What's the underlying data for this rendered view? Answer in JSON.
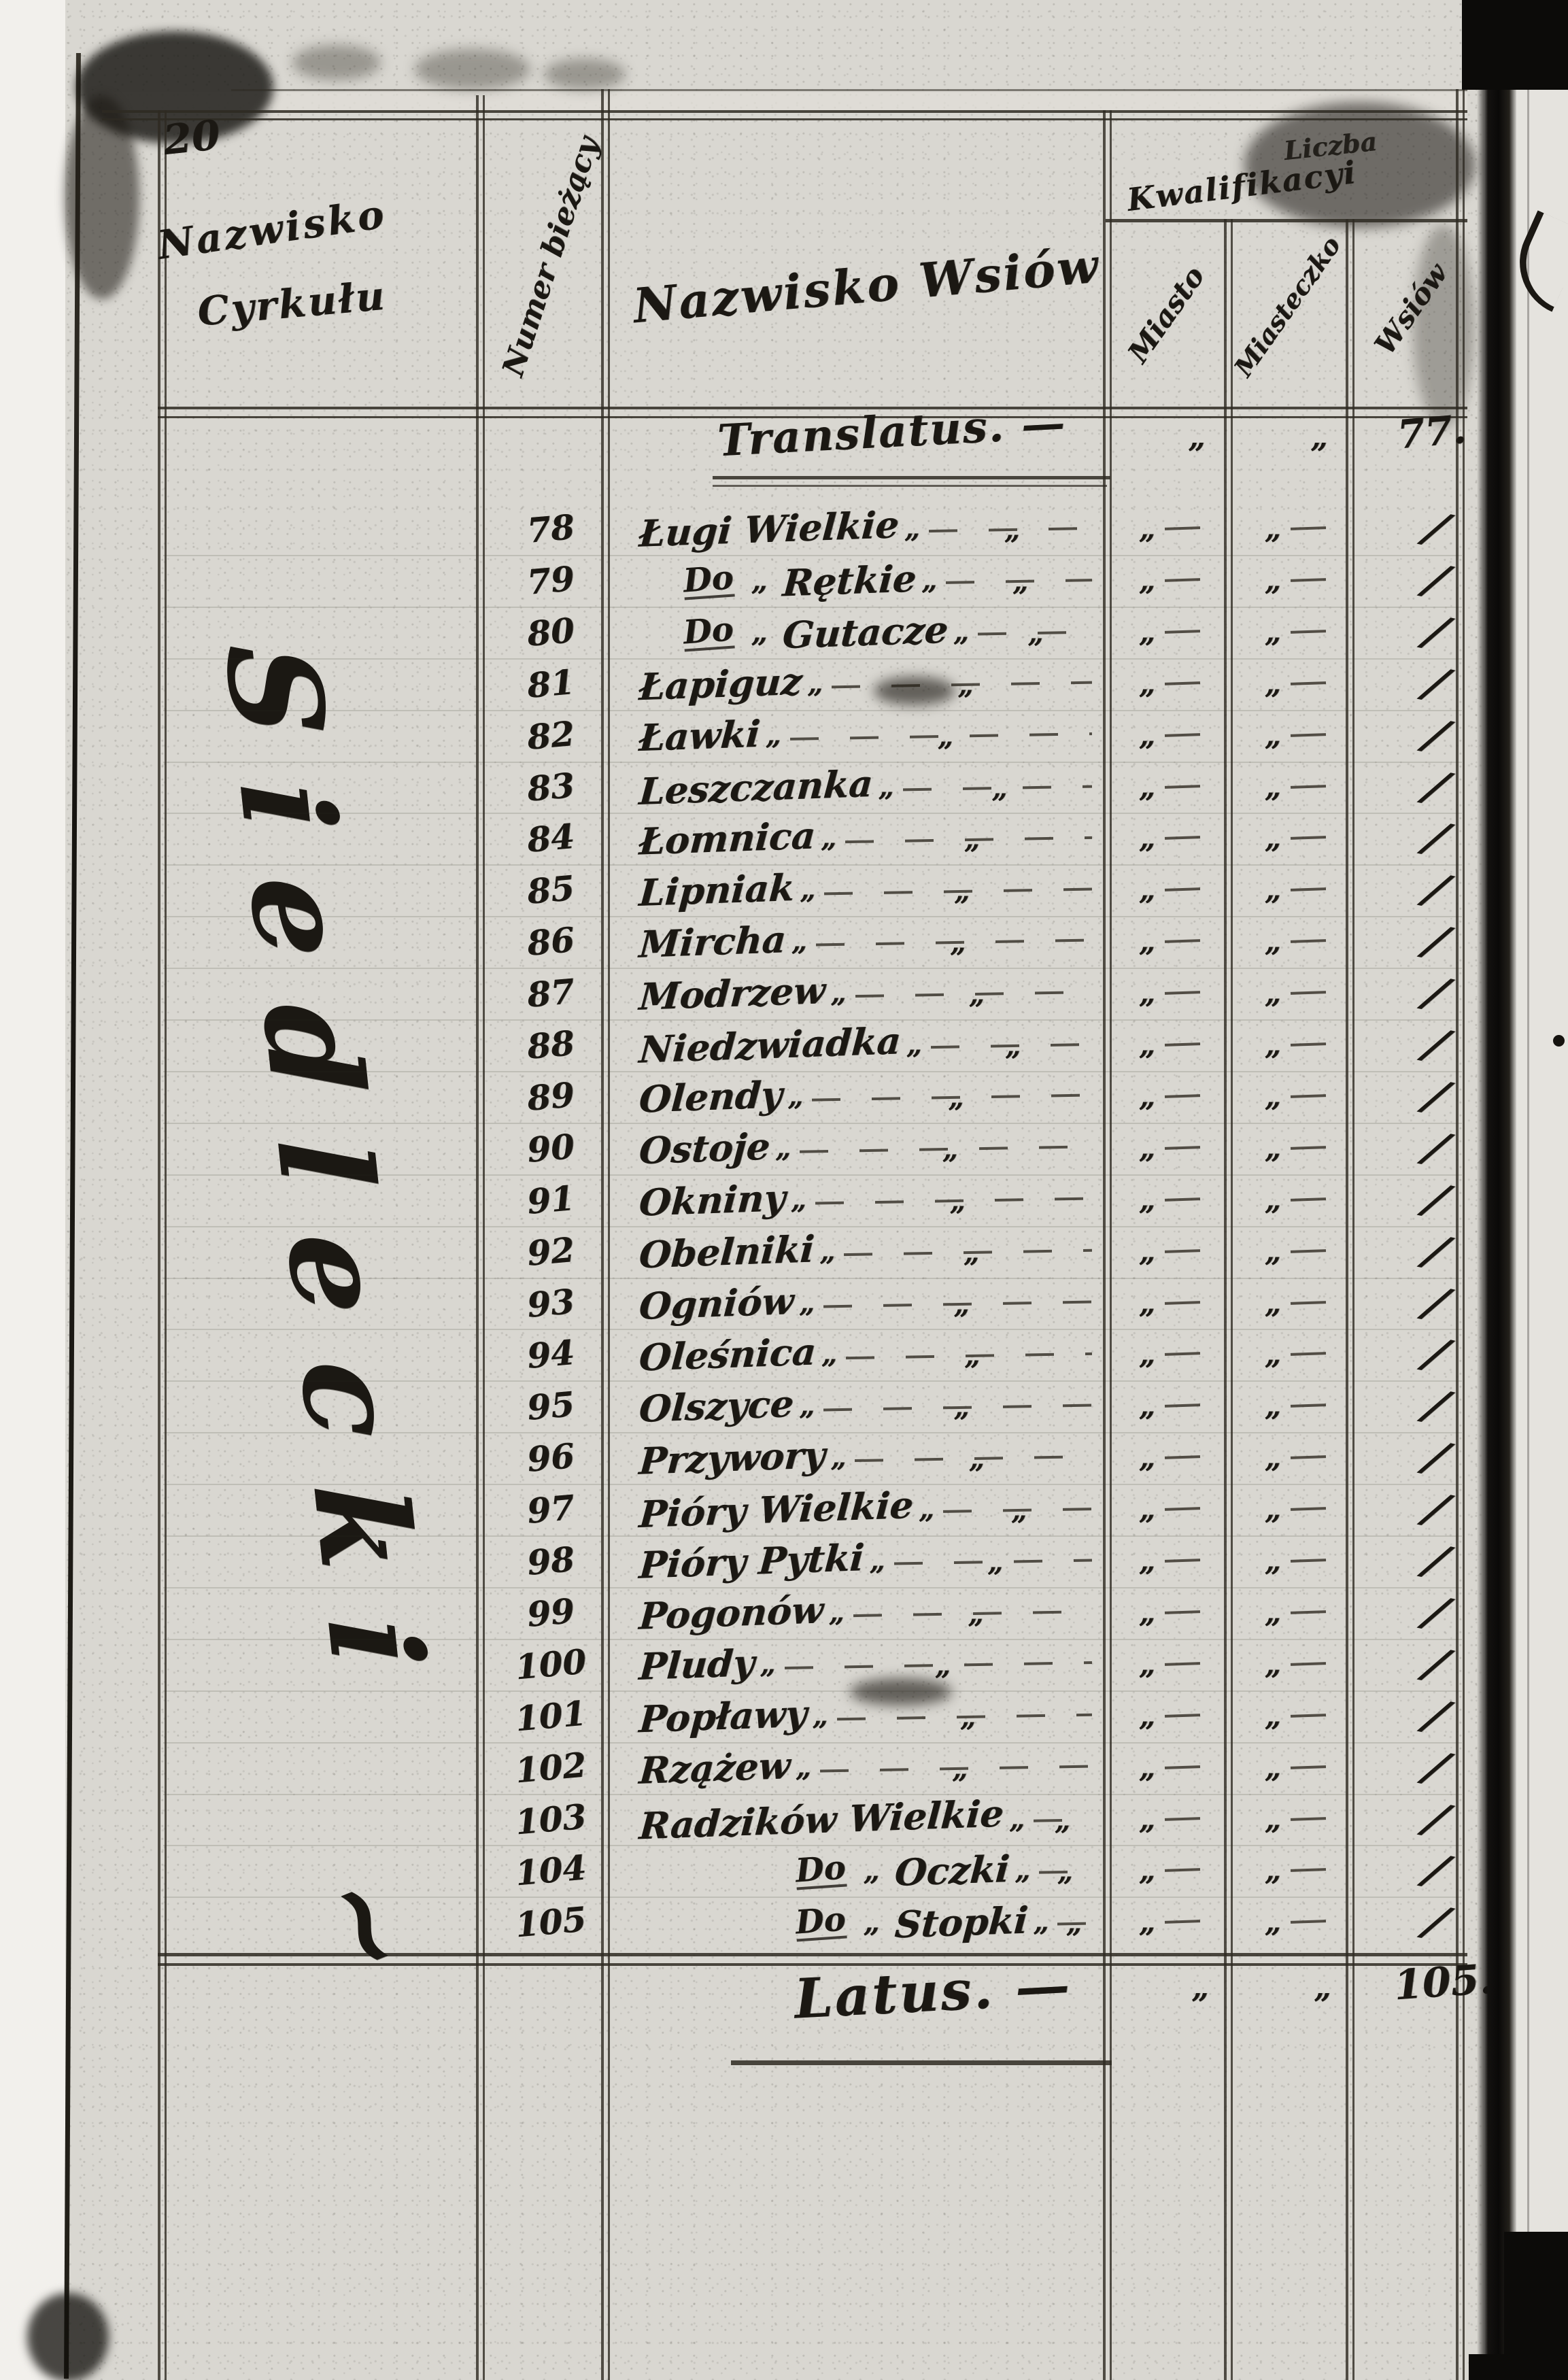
{
  "page_number": "20",
  "columns": {
    "cyrkul": {
      "line1": "Nazwisko",
      "line2": "Cyrkułu"
    },
    "numer": "Numer bieżący",
    "wsie": "Nazwisko Wsiów",
    "group": {
      "top": "Liczba",
      "main": "Kwalifikacyi"
    },
    "sub": {
      "miasto": "Miasto",
      "miasteczko": "Miasteczko",
      "wies": "Wsiów"
    }
  },
  "cyrkul_name": "Siedlecki",
  "cyrkul_flourish": "~",
  "filler_mark": "„",
  "carry": {
    "label": "Translatus. —",
    "miasto": "„",
    "miasteczko": "„",
    "wies": "77."
  },
  "rows": [
    {
      "num": "78",
      "prefix": "",
      "quote": "",
      "name": "Ługi Wielkie",
      "miasto": "„",
      "miasteczko": "„",
      "wies": "/"
    },
    {
      "num": "79",
      "prefix": "Do",
      "quote": "„",
      "name": "Rętkie",
      "miasto": "„",
      "miasteczko": "„",
      "wies": "/"
    },
    {
      "num": "80",
      "prefix": "Do",
      "quote": "„",
      "name": "Gutacze",
      "miasto": "„",
      "miasteczko": "„",
      "wies": "/"
    },
    {
      "num": "81",
      "prefix": "",
      "quote": "",
      "name": "Łapiguz",
      "miasto": "„",
      "miasteczko": "„",
      "wies": "/"
    },
    {
      "num": "82",
      "prefix": "",
      "quote": "",
      "name": "Ławki",
      "miasto": "„",
      "miasteczko": "„",
      "wies": "/"
    },
    {
      "num": "83",
      "prefix": "",
      "quote": "",
      "name": "Leszczanka",
      "miasto": "„",
      "miasteczko": "„",
      "wies": "/"
    },
    {
      "num": "84",
      "prefix": "",
      "quote": "",
      "name": "Łomnica",
      "miasto": "„",
      "miasteczko": "„",
      "wies": "/"
    },
    {
      "num": "85",
      "prefix": "",
      "quote": "",
      "name": "Lipniak",
      "miasto": "„",
      "miasteczko": "„",
      "wies": "/"
    },
    {
      "num": "86",
      "prefix": "",
      "quote": "",
      "name": "Mircha",
      "miasto": "„",
      "miasteczko": "„",
      "wies": "/"
    },
    {
      "num": "87",
      "prefix": "",
      "quote": "",
      "name": "Modrzew",
      "miasto": "„",
      "miasteczko": "„",
      "wies": "/"
    },
    {
      "num": "88",
      "prefix": "",
      "quote": "",
      "name": "Niedzwiadka",
      "miasto": "„",
      "miasteczko": "„",
      "wies": "/"
    },
    {
      "num": "89",
      "prefix": "",
      "quote": "",
      "name": "Olendy",
      "miasto": "„",
      "miasteczko": "„",
      "wies": "/"
    },
    {
      "num": "90",
      "prefix": "",
      "quote": "",
      "name": "Ostoje",
      "miasto": "„",
      "miasteczko": "„",
      "wies": "/"
    },
    {
      "num": "91",
      "prefix": "",
      "quote": "",
      "name": "Okniny",
      "miasto": "„",
      "miasteczko": "„",
      "wies": "/"
    },
    {
      "num": "92",
      "prefix": "",
      "quote": "",
      "name": "Obelniki",
      "miasto": "„",
      "miasteczko": "„",
      "wies": "/"
    },
    {
      "num": "93",
      "prefix": "",
      "quote": "",
      "name": "Ogniów",
      "miasto": "„",
      "miasteczko": "„",
      "wies": "/"
    },
    {
      "num": "94",
      "prefix": "",
      "quote": "",
      "name": "Oleśnica",
      "miasto": "„",
      "miasteczko": "„",
      "wies": "/"
    },
    {
      "num": "95",
      "prefix": "",
      "quote": "",
      "name": "Olszyce",
      "miasto": "„",
      "miasteczko": "„",
      "wies": "/"
    },
    {
      "num": "96",
      "prefix": "",
      "quote": "",
      "name": "Przywory",
      "miasto": "„",
      "miasteczko": "„",
      "wies": "/"
    },
    {
      "num": "97",
      "prefix": "",
      "quote": "",
      "name": "Pióry Wielkie",
      "miasto": "„",
      "miasteczko": "„",
      "wies": "/"
    },
    {
      "num": "98",
      "prefix": "",
      "quote": "",
      "name": "Pióry Pytki",
      "miasto": "„",
      "miasteczko": "„",
      "wies": "/"
    },
    {
      "num": "99",
      "prefix": "",
      "quote": "",
      "name": "Pogonów",
      "miasto": "„",
      "miasteczko": "„",
      "wies": "/"
    },
    {
      "num": "100",
      "prefix": "",
      "quote": "",
      "name": "Pludy",
      "miasto": "„",
      "miasteczko": "„",
      "wies": "/"
    },
    {
      "num": "101",
      "prefix": "",
      "quote": "",
      "name": "Popławy",
      "miasto": "„",
      "miasteczko": "„",
      "wies": "/"
    },
    {
      "num": "102",
      "prefix": "",
      "quote": "",
      "name": "Rzążew",
      "miasto": "„",
      "miasteczko": "„",
      "wies": "/"
    },
    {
      "num": "103",
      "prefix": "",
      "quote": "",
      "name": "Radzików Wielkie",
      "miasto": "„",
      "miasteczko": "„",
      "wies": "/"
    },
    {
      "num": "104",
      "prefix": "Do",
      "quote": "„",
      "name": "Oczki",
      "indent": "wide",
      "miasto": "„",
      "miasteczko": "„",
      "wies": "/"
    },
    {
      "num": "105",
      "prefix": "Do",
      "quote": "„",
      "name": "Stopki",
      "indent": "wide",
      "miasto": "„",
      "miasteczko": "„",
      "wies": "/"
    }
  ],
  "total": {
    "label": "Latus. —",
    "miasto": "„",
    "miasteczko": "„",
    "wies": "105."
  }
}
